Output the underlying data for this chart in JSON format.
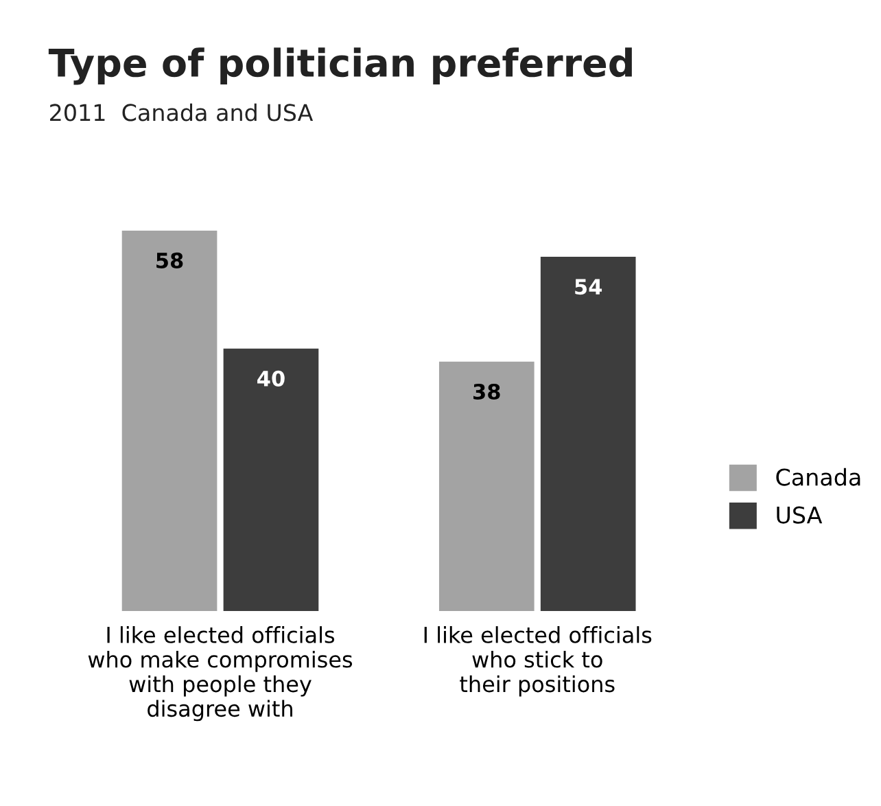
{
  "chart_data": {
    "type": "bar",
    "title": "Type of politician preferred",
    "subtitle": "2011  Canada and USA",
    "categories": [
      "I like elected officials\nwho make compromises\nwith people they\ndisagree with",
      "I like elected officials\nwho stick to\ntheir positions"
    ],
    "series": [
      {
        "name": "Canada",
        "color": "#a3a3a3",
        "values": [
          58,
          38
        ]
      },
      {
        "name": "USA",
        "color": "#3d3d3d",
        "values": [
          40,
          54
        ]
      }
    ],
    "data_labels": true,
    "legend": "right",
    "grid": false
  }
}
